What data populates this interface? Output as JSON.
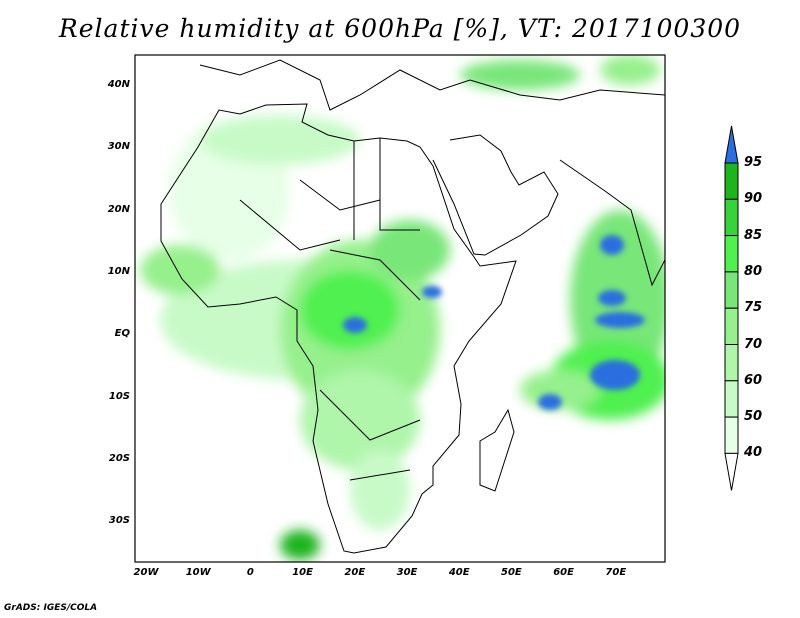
{
  "title": "Relative humidity at 600hPa [%], VT: 2017100300",
  "lat_labels": [
    "40N",
    "30N",
    "20N",
    "10N",
    "EQ",
    "10S",
    "20S",
    "30S"
  ],
  "lon_labels": [
    "20W",
    "10W",
    "0",
    "10E",
    "20E",
    "30E",
    "40E",
    "50E",
    "60E",
    "70E"
  ],
  "colorbar": {
    "levels": [
      "40",
      "50",
      "60",
      "70",
      "75",
      "80",
      "85",
      "90",
      "95"
    ],
    "colors": [
      "#ffffff",
      "#e6ffe6",
      "#c8fac8",
      "#aff5aa",
      "#96f08c",
      "#78e678",
      "#50f050",
      "#37d23c",
      "#1eb41e",
      "#2a6ee0"
    ]
  },
  "credit": "GrADS: IGES/COLA"
}
